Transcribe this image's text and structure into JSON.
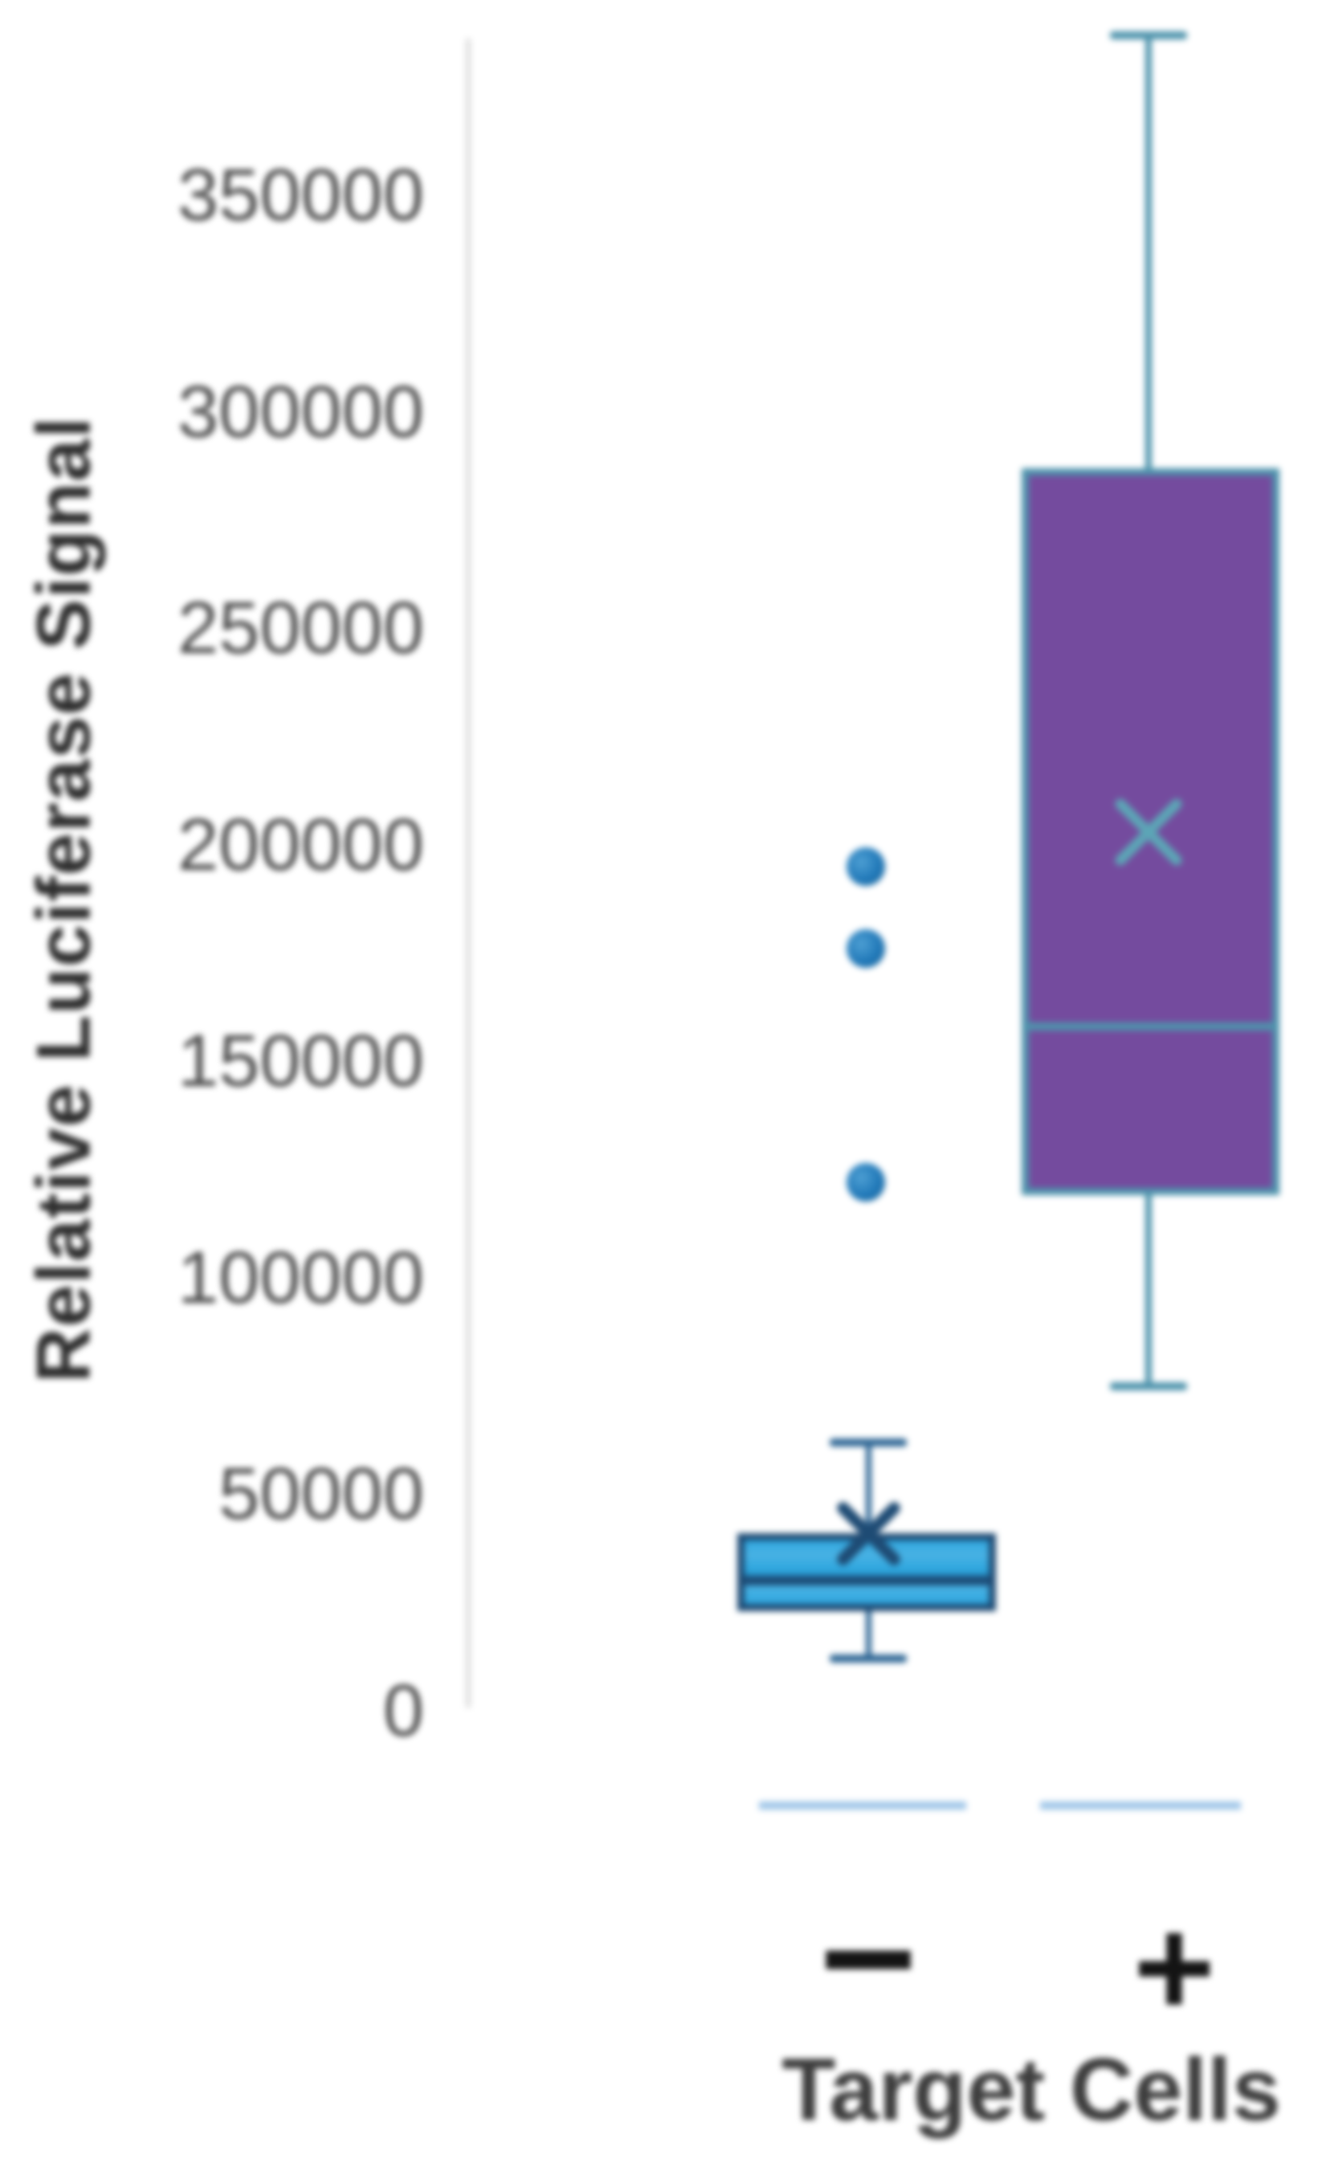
{
  "figure": {
    "y_axis_title": "Relative Luciferase Signal",
    "x_axis_title": "Target Cells"
  },
  "chart_data": {
    "type": "box",
    "title": "",
    "xlabel": "Target Cells",
    "ylabel": "Relative Luciferase Signal",
    "categories": [
      "−",
      "+"
    ],
    "yticks": [
      0,
      50000,
      100000,
      150000,
      200000,
      250000,
      300000,
      350000
    ],
    "ylim": [
      0,
      390000
    ],
    "grid": false,
    "legend": "none",
    "series": [
      {
        "name": "Target Cells −",
        "category": "−",
        "min": 12000,
        "q1": 23000,
        "median": 30000,
        "q3": 41000,
        "max": 62000,
        "mean": 41000,
        "outliers": [
          122000,
          176000,
          195000
        ],
        "box_fill": "#2FA7DF",
        "box_border": "#1E4B74",
        "median_color": "#1D4C77",
        "whisker_color": "#2F6795",
        "mean_color": "#1E4B74",
        "outlier_color": "#2078B8"
      },
      {
        "name": "Target Cells +",
        "category": "+",
        "min": 75000,
        "q1": 119000,
        "median": 158000,
        "q3": 287000,
        "max": 387000,
        "mean": 203000,
        "outliers": [],
        "box_fill": "#744B9E",
        "box_border": "#4E93AC",
        "median_color": "#4E93AC",
        "whisker_color": "#4E93AC",
        "mean_color": "#5CA5B6",
        "outlier_color": "#2078B8"
      }
    ],
    "category_baseline_color": "#9FC6E8",
    "axis_line_color": "#DCDCDC",
    "tick_text_color": "#4D4D4D"
  }
}
